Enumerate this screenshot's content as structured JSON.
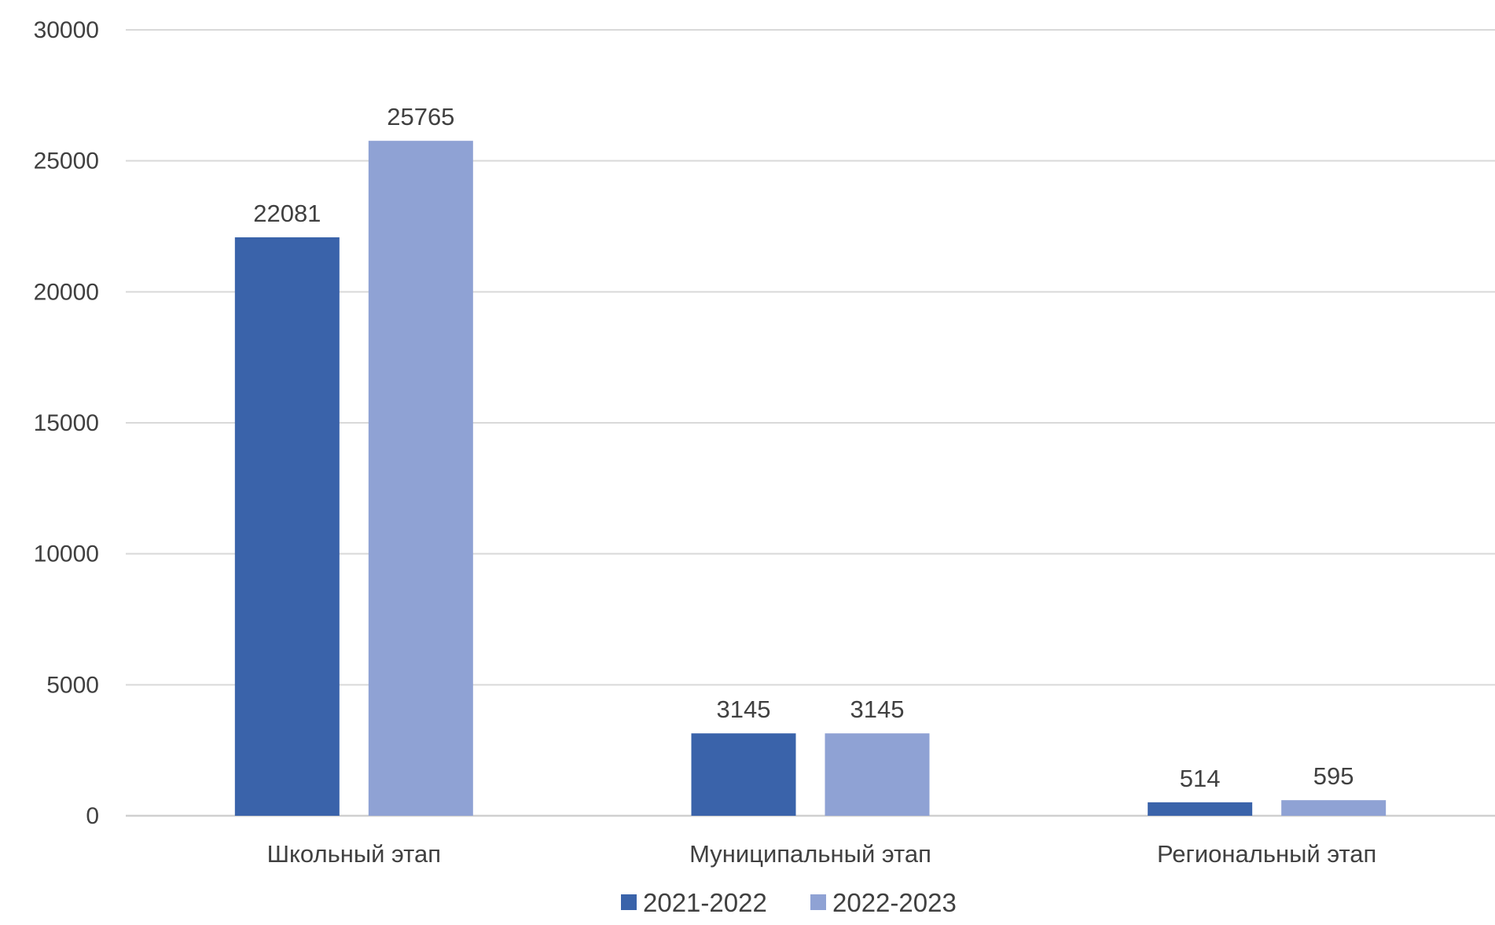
{
  "chart_data": {
    "type": "bar",
    "title": "",
    "xlabel": "",
    "ylabel": "",
    "categories": [
      "Школьный этап",
      "Муниципальный этап",
      "Региональный этап"
    ],
    "series": [
      {
        "name": "2021-2022",
        "values": [
          22081,
          3145,
          514
        ],
        "color": "#3A63AA"
      },
      {
        "name": "2022-2023",
        "values": [
          25765,
          3145,
          595
        ],
        "color": "#8FA2D4"
      }
    ],
    "ylim": [
      0,
      30000
    ],
    "yticks": [
      0,
      5000,
      10000,
      15000,
      20000,
      25000,
      30000
    ],
    "grid": true,
    "data_labels": true,
    "legend_position": "bottom-center"
  },
  "colors": {
    "gridline": "#D9D9D9",
    "axis_line": "#D0D0D0",
    "text": "#404040"
  }
}
